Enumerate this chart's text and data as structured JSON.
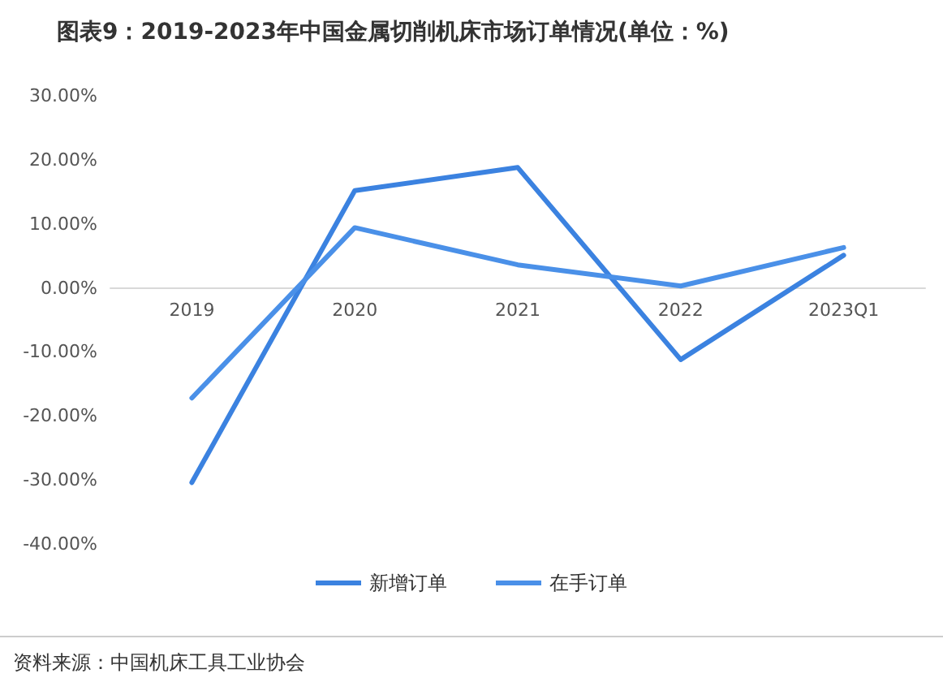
{
  "chart_data": {
    "type": "line",
    "title": "图表9：2019-2023年中国金属切削机床市场订单情况(单位：%)",
    "categories": [
      "2019",
      "2020",
      "2021",
      "2022",
      "2023Q1"
    ],
    "series": [
      {
        "name": "新增订单",
        "color": "#3b82e0",
        "values": [
          -30.4,
          15.2,
          18.8,
          -11.2,
          5.1
        ]
      },
      {
        "name": "在手订单",
        "color": "#4a90e8",
        "values": [
          -17.2,
          9.4,
          3.6,
          0.3,
          6.3
        ]
      }
    ],
    "ylim": [
      -40,
      30
    ],
    "yticks": [
      {
        "value": -40,
        "label": "-40.00%"
      },
      {
        "value": -30,
        "label": "-30.00%"
      },
      {
        "value": -20,
        "label": "-20.00%"
      },
      {
        "value": -10,
        "label": "-10.00%"
      },
      {
        "value": 0,
        "label": "0.00%"
      },
      {
        "value": 10,
        "label": "10.00%"
      },
      {
        "value": 20,
        "label": "20.00%"
      },
      {
        "value": 30,
        "label": "30.00%"
      }
    ],
    "legend": "bottom",
    "marker": "none",
    "line_style": "solid",
    "annotations": [
      "资料来源：中国机床工具工业协会"
    ]
  }
}
